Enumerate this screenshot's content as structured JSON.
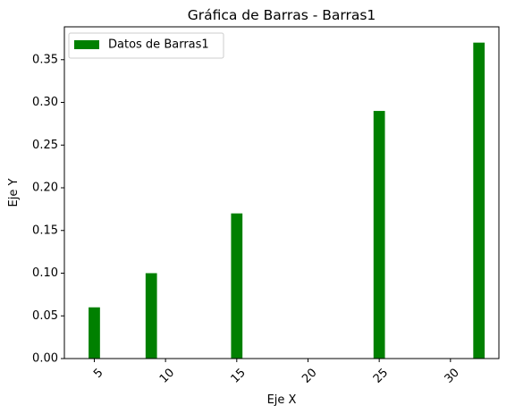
{
  "chart_data": {
    "type": "bar",
    "title": "Gráfica de Barras - Barras1",
    "xlabel": "Eje X",
    "ylabel": "Eje Y",
    "x": [
      5,
      9,
      15,
      25,
      32
    ],
    "values": [
      0.06,
      0.1,
      0.17,
      0.29,
      0.37
    ],
    "bar_width": 0.8,
    "xlim": [
      2.9,
      33.4
    ],
    "ylim": [
      0,
      0.3885
    ],
    "xticks": [
      5,
      10,
      15,
      20,
      25,
      30
    ],
    "xtick_labels": [
      "5",
      "10",
      "15",
      "20",
      "25",
      "30"
    ],
    "xtick_rotation": 45,
    "yticks": [
      0.0,
      0.05,
      0.1,
      0.15,
      0.2,
      0.25,
      0.3,
      0.35
    ],
    "ytick_labels": [
      "0.00",
      "0.05",
      "0.10",
      "0.15",
      "0.20",
      "0.25",
      "0.30",
      "0.35"
    ],
    "legend": [
      {
        "label": "Datos de Barras1",
        "color": "#008000"
      }
    ],
    "legend_position": "upper-left",
    "bar_color": "#008000",
    "grid": false
  }
}
